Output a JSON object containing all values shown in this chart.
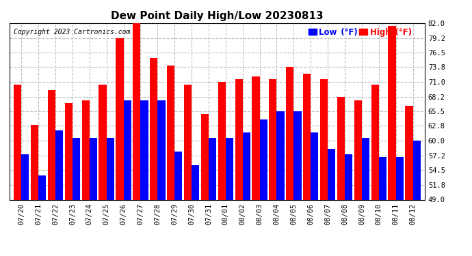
{
  "title": "Dew Point Daily High/Low 20230813",
  "copyright": "Copyright 2023 Cartronics.com",
  "dates": [
    "07/20",
    "07/21",
    "07/22",
    "07/23",
    "07/24",
    "07/25",
    "07/26",
    "07/27",
    "07/28",
    "07/29",
    "07/30",
    "07/31",
    "08/01",
    "08/02",
    "08/03",
    "08/04",
    "08/05",
    "08/06",
    "08/07",
    "08/08",
    "08/09",
    "08/10",
    "08/11",
    "08/12"
  ],
  "high": [
    70.5,
    63.0,
    69.5,
    67.0,
    67.5,
    70.5,
    79.2,
    82.0,
    75.5,
    74.0,
    70.5,
    65.0,
    71.0,
    71.5,
    72.0,
    71.5,
    73.8,
    72.5,
    71.5,
    68.2,
    67.5,
    70.5,
    81.5,
    66.5
  ],
  "low": [
    57.5,
    53.5,
    62.0,
    60.5,
    60.5,
    60.5,
    67.5,
    67.5,
    67.5,
    58.0,
    55.5,
    60.5,
    60.5,
    61.5,
    64.0,
    65.5,
    65.5,
    61.5,
    58.5,
    57.5,
    60.5,
    57.0,
    57.0,
    60.0
  ],
  "ylim_min": 49.0,
  "ylim_max": 82.0,
  "yticks": [
    49.0,
    51.8,
    54.5,
    57.2,
    60.0,
    62.8,
    65.5,
    68.2,
    71.0,
    73.8,
    76.5,
    79.2,
    82.0
  ],
  "high_color": "#FF0000",
  "low_color": "#0000FF",
  "bg_color": "#FFFFFF",
  "grid_color": "#C0C0C0",
  "title_fontsize": 11,
  "axis_fontsize": 7.5,
  "copyright_fontsize": 7
}
